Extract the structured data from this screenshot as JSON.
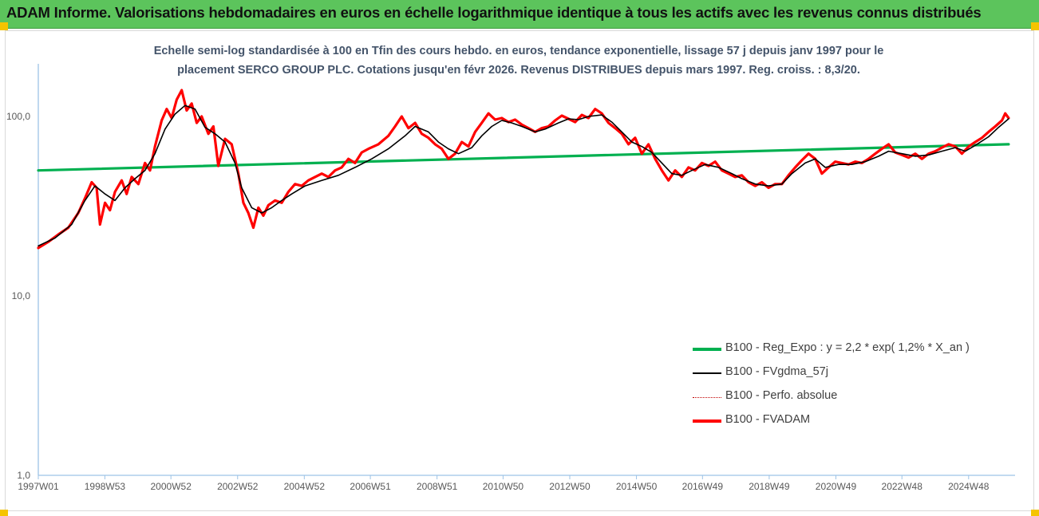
{
  "header": {
    "title": "ADAM Informe. Valorisations hebdomadaires en euros en échelle logarithmique identique à tous les actifs avec les revenus connus distribués"
  },
  "chart_data": {
    "type": "line",
    "subtitle_line1": "Echelle semi-log standardisée à 100 en Tfin des cours hebdo. en euros, tendance exponentielle, lissage 57 j depuis janv 1997 pour le",
    "subtitle_line2": "placement SERCO GROUP PLC. Cotations jusqu'en févr 2026. Revenus DISTRIBUES depuis mars 1997.  Reg. croiss. : 8,3/20.",
    "y_scale": "log",
    "ylim": [
      1,
      100
    ],
    "y_ticks": [
      "1,0",
      "10,0",
      "100,0"
    ],
    "x_tick_labels": [
      "1997W01",
      "1998W53",
      "2000W52",
      "2002W52",
      "2004W52",
      "2006W51",
      "2008W51",
      "2010W50",
      "2012W50",
      "2014W50",
      "2016W49",
      "2018W49",
      "2020W49",
      "2022W48",
      "2024W48"
    ],
    "x_range_years": [
      1997.0,
      2026.15
    ],
    "legend_position": "right",
    "series": [
      {
        "name": "B100 - Reg_Expo : y = 2,2 * exp( 1,2% *  X_an )",
        "color": "#00b050",
        "style": "thick",
        "points": [
          [
            1997.0,
            50
          ],
          [
            2026.1,
            70
          ]
        ]
      },
      {
        "name": "B100 - FVgdma_57j",
        "color": "#000000",
        "style": "thin",
        "points": [
          [
            1997.0,
            19
          ],
          [
            1997.5,
            21
          ],
          [
            1998.0,
            25
          ],
          [
            1998.4,
            34
          ],
          [
            1998.7,
            41
          ],
          [
            1999.0,
            37
          ],
          [
            1999.3,
            34
          ],
          [
            1999.6,
            40
          ],
          [
            1999.9,
            45
          ],
          [
            2000.2,
            50
          ],
          [
            2000.5,
            62
          ],
          [
            2000.8,
            85
          ],
          [
            2001.1,
            103
          ],
          [
            2001.4,
            115
          ],
          [
            2001.7,
            110
          ],
          [
            2002.0,
            87
          ],
          [
            2002.3,
            80
          ],
          [
            2002.6,
            72
          ],
          [
            2002.9,
            55
          ],
          [
            2003.1,
            40
          ],
          [
            2003.4,
            31
          ],
          [
            2003.7,
            29
          ],
          [
            2004.0,
            31
          ],
          [
            2004.3,
            34
          ],
          [
            2004.6,
            37
          ],
          [
            2005.0,
            41
          ],
          [
            2005.5,
            44
          ],
          [
            2006.0,
            47
          ],
          [
            2006.5,
            52
          ],
          [
            2007.0,
            58
          ],
          [
            2007.5,
            66
          ],
          [
            2008.0,
            78
          ],
          [
            2008.3,
            88
          ],
          [
            2008.7,
            82
          ],
          [
            2009.0,
            72
          ],
          [
            2009.3,
            66
          ],
          [
            2009.6,
            62
          ],
          [
            2010.0,
            67
          ],
          [
            2010.3,
            78
          ],
          [
            2010.6,
            88
          ],
          [
            2010.9,
            95
          ],
          [
            2011.2,
            92
          ],
          [
            2011.5,
            88
          ],
          [
            2011.9,
            82
          ],
          [
            2012.2,
            85
          ],
          [
            2012.6,
            92
          ],
          [
            2012.9,
            97
          ],
          [
            2013.2,
            96
          ],
          [
            2013.5,
            100
          ],
          [
            2013.9,
            102
          ],
          [
            2014.2,
            93
          ],
          [
            2014.5,
            82
          ],
          [
            2014.8,
            72
          ],
          [
            2015.1,
            68
          ],
          [
            2015.4,
            63
          ],
          [
            2015.7,
            55
          ],
          [
            2016.0,
            48
          ],
          [
            2016.3,
            47
          ],
          [
            2016.6,
            50
          ],
          [
            2017.0,
            54
          ],
          [
            2017.4,
            52
          ],
          [
            2017.8,
            48
          ],
          [
            2018.1,
            45
          ],
          [
            2018.5,
            42
          ],
          [
            2018.9,
            41
          ],
          [
            2019.3,
            42
          ],
          [
            2019.6,
            48
          ],
          [
            2020.0,
            55
          ],
          [
            2020.3,
            58
          ],
          [
            2020.6,
            52
          ],
          [
            2021.0,
            54
          ],
          [
            2021.4,
            54
          ],
          [
            2021.8,
            56
          ],
          [
            2022.2,
            60
          ],
          [
            2022.5,
            64
          ],
          [
            2022.9,
            62
          ],
          [
            2023.3,
            60
          ],
          [
            2023.7,
            61
          ],
          [
            2024.1,
            64
          ],
          [
            2024.5,
            67
          ],
          [
            2024.8,
            64
          ],
          [
            2025.1,
            69
          ],
          [
            2025.5,
            77
          ],
          [
            2025.8,
            87
          ],
          [
            2026.1,
            97
          ]
        ]
      },
      {
        "name": "B100 - Perfo. absolue",
        "color": "#c00000",
        "style": "dotted",
        "points": []
      },
      {
        "name": "B100 - FVADAM",
        "color": "#ff0000",
        "style": "thick",
        "points": [
          [
            1997.0,
            18.5
          ],
          [
            1997.3,
            20
          ],
          [
            1997.6,
            22
          ],
          [
            1997.9,
            24
          ],
          [
            1998.2,
            29
          ],
          [
            1998.4,
            35
          ],
          [
            1998.6,
            43
          ],
          [
            1998.75,
            40
          ],
          [
            1998.85,
            25
          ],
          [
            1999.0,
            33
          ],
          [
            1999.15,
            30
          ],
          [
            1999.3,
            38
          ],
          [
            1999.5,
            44
          ],
          [
            1999.65,
            37
          ],
          [
            1999.8,
            46
          ],
          [
            2000.0,
            42
          ],
          [
            2000.2,
            55
          ],
          [
            2000.35,
            50
          ],
          [
            2000.5,
            68
          ],
          [
            2000.7,
            95
          ],
          [
            2000.85,
            110
          ],
          [
            2001.0,
            98
          ],
          [
            2001.15,
            124
          ],
          [
            2001.3,
            140
          ],
          [
            2001.45,
            108
          ],
          [
            2001.6,
            118
          ],
          [
            2001.75,
            92
          ],
          [
            2001.9,
            100
          ],
          [
            2002.1,
            80
          ],
          [
            2002.25,
            88
          ],
          [
            2002.4,
            53
          ],
          [
            2002.6,
            75
          ],
          [
            2002.8,
            70
          ],
          [
            2003.0,
            48
          ],
          [
            2003.15,
            33
          ],
          [
            2003.3,
            29
          ],
          [
            2003.45,
            24
          ],
          [
            2003.6,
            31
          ],
          [
            2003.75,
            28
          ],
          [
            2003.9,
            32
          ],
          [
            2004.1,
            34
          ],
          [
            2004.3,
            33
          ],
          [
            2004.5,
            38
          ],
          [
            2004.7,
            42
          ],
          [
            2004.9,
            41
          ],
          [
            2005.1,
            44
          ],
          [
            2005.3,
            46
          ],
          [
            2005.5,
            48
          ],
          [
            2005.7,
            46
          ],
          [
            2005.9,
            50
          ],
          [
            2006.1,
            52
          ],
          [
            2006.3,
            58
          ],
          [
            2006.5,
            55
          ],
          [
            2006.7,
            63
          ],
          [
            2006.9,
            66
          ],
          [
            2007.2,
            70
          ],
          [
            2007.5,
            78
          ],
          [
            2007.7,
            88
          ],
          [
            2007.9,
            100
          ],
          [
            2008.1,
            86
          ],
          [
            2008.3,
            92
          ],
          [
            2008.5,
            80
          ],
          [
            2008.7,
            76
          ],
          [
            2008.9,
            70
          ],
          [
            2009.1,
            66
          ],
          [
            2009.3,
            58
          ],
          [
            2009.5,
            62
          ],
          [
            2009.7,
            72
          ],
          [
            2009.9,
            68
          ],
          [
            2010.1,
            82
          ],
          [
            2010.3,
            92
          ],
          [
            2010.5,
            104
          ],
          [
            2010.7,
            96
          ],
          [
            2010.9,
            98
          ],
          [
            2011.1,
            93
          ],
          [
            2011.3,
            96
          ],
          [
            2011.5,
            90
          ],
          [
            2011.7,
            86
          ],
          [
            2011.9,
            82
          ],
          [
            2012.1,
            86
          ],
          [
            2012.3,
            88
          ],
          [
            2012.5,
            95
          ],
          [
            2012.7,
            101
          ],
          [
            2012.9,
            97
          ],
          [
            2013.1,
            93
          ],
          [
            2013.3,
            102
          ],
          [
            2013.5,
            98
          ],
          [
            2013.7,
            110
          ],
          [
            2013.9,
            104
          ],
          [
            2014.1,
            92
          ],
          [
            2014.3,
            86
          ],
          [
            2014.5,
            80
          ],
          [
            2014.7,
            70
          ],
          [
            2014.9,
            76
          ],
          [
            2015.1,
            62
          ],
          [
            2015.3,
            70
          ],
          [
            2015.5,
            58
          ],
          [
            2015.7,
            50
          ],
          [
            2015.9,
            44
          ],
          [
            2016.1,
            50
          ],
          [
            2016.3,
            46
          ],
          [
            2016.5,
            52
          ],
          [
            2016.7,
            50
          ],
          [
            2016.9,
            55
          ],
          [
            2017.1,
            53
          ],
          [
            2017.3,
            56
          ],
          [
            2017.5,
            50
          ],
          [
            2017.7,
            48
          ],
          [
            2017.9,
            46
          ],
          [
            2018.1,
            47
          ],
          [
            2018.3,
            43
          ],
          [
            2018.5,
            41
          ],
          [
            2018.7,
            43
          ],
          [
            2018.9,
            40
          ],
          [
            2019.1,
            42
          ],
          [
            2019.3,
            42
          ],
          [
            2019.5,
            47
          ],
          [
            2019.7,
            52
          ],
          [
            2019.9,
            57
          ],
          [
            2020.1,
            62
          ],
          [
            2020.3,
            58
          ],
          [
            2020.5,
            48
          ],
          [
            2020.7,
            52
          ],
          [
            2020.9,
            56
          ],
          [
            2021.1,
            55
          ],
          [
            2021.3,
            54
          ],
          [
            2021.5,
            56
          ],
          [
            2021.7,
            55
          ],
          [
            2021.9,
            58
          ],
          [
            2022.1,
            62
          ],
          [
            2022.3,
            66
          ],
          [
            2022.5,
            70
          ],
          [
            2022.7,
            63
          ],
          [
            2022.9,
            61
          ],
          [
            2023.1,
            59
          ],
          [
            2023.3,
            62
          ],
          [
            2023.5,
            58
          ],
          [
            2023.7,
            62
          ],
          [
            2023.9,
            64
          ],
          [
            2024.1,
            67
          ],
          [
            2024.3,
            70
          ],
          [
            2024.5,
            68
          ],
          [
            2024.7,
            62
          ],
          [
            2024.9,
            68
          ],
          [
            2025.1,
            72
          ],
          [
            2025.3,
            76
          ],
          [
            2025.5,
            82
          ],
          [
            2025.7,
            88
          ],
          [
            2025.9,
            95
          ],
          [
            2026.0,
            104
          ],
          [
            2026.1,
            98
          ]
        ]
      }
    ]
  }
}
